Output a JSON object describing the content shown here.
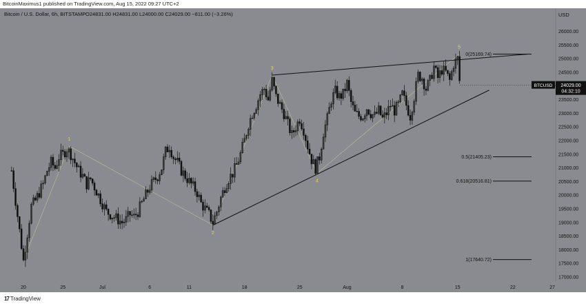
{
  "header": {
    "text": "BitcoinMaximus1 published on TradingView.com, Aug 15, 2022 09:27 UTC+2"
  },
  "legend": {
    "symbol": "Bitcoin / U.S. Dollar, 6h, BITSTAMP",
    "ohlc": "O24831.00 H24831.00 L24000.00 C24029.00 −811.00 (−3.26%)"
  },
  "footer": {
    "logo": "TradingView"
  },
  "colors": {
    "background": "#8a8b90",
    "candle": "#111111",
    "wave_label": "#e8d44d",
    "wave_line": "#b9b49a",
    "axis_text": "#111111",
    "price_box": "#111111"
  },
  "chart_data": {
    "type": "candlestick",
    "currency": "USD",
    "ylim": [
      16600,
      26600
    ],
    "y_ticks": [
      17000,
      17500,
      18000,
      18500,
      19000,
      19500,
      20000,
      20500,
      21000,
      21500,
      22000,
      22500,
      23000,
      23500,
      24000,
      24500,
      25000,
      25500,
      26000
    ],
    "top_tick_label": "26000.00",
    "x_ticks": [
      "20",
      "25",
      "Jul",
      "6",
      "11",
      "18",
      "25",
      "Aug",
      "8",
      "15",
      "22",
      "27"
    ],
    "x_tick_days": [
      0,
      5,
      10,
      16,
      21,
      28,
      35,
      41,
      48,
      55,
      62,
      67
    ],
    "last_price": {
      "symbol": "BTCUSD",
      "price": "24029.00",
      "countdown": "04:32:10"
    },
    "wave_points": [
      {
        "label": "1",
        "day": 5.8,
        "price": 21800
      },
      {
        "label": "2",
        "day": 24,
        "price": 18900
      },
      {
        "label": "3",
        "day": 31.5,
        "price": 24400
      },
      {
        "label": "4",
        "day": 37.2,
        "price": 20800
      },
      {
        "label": "5",
        "day": 55.2,
        "price": 25169.74
      }
    ],
    "wave_path": [
      [
        0,
        17600
      ],
      [
        5.8,
        21800
      ],
      [
        24,
        18900
      ],
      [
        31.5,
        24400
      ],
      [
        37.2,
        20800
      ],
      [
        55.2,
        25169.74
      ]
    ],
    "trendlines": [
      {
        "from": [
          31.5,
          24400
        ],
        "to": [
          64,
          25169.74
        ]
      },
      {
        "from": [
          24,
          18900
        ],
        "to": [
          59,
          23850
        ]
      }
    ],
    "fib_levels": [
      {
        "label": "0(25169.74)",
        "price": 25169.74
      },
      {
        "label": "0.5(21405.23)",
        "price": 21405.23
      },
      {
        "label": "0.618(20516.81)",
        "price": 20516.81
      },
      {
        "label": "1(17640.72)",
        "price": 17640.72
      }
    ],
    "close_path": [
      [
        -1.5,
        20900
      ],
      [
        0,
        17600
      ],
      [
        0.5,
        18600
      ],
      [
        1,
        19600
      ],
      [
        1.5,
        19800
      ],
      [
        2,
        20100
      ],
      [
        2.5,
        20400
      ],
      [
        3,
        20900
      ],
      [
        3.5,
        21200
      ],
      [
        4,
        21000
      ],
      [
        4.5,
        21400
      ],
      [
        5,
        21500
      ],
      [
        5.5,
        21700
      ],
      [
        6,
        21500
      ],
      [
        6.5,
        21200
      ],
      [
        7,
        20900
      ],
      [
        7.5,
        20700
      ],
      [
        8,
        20400
      ],
      [
        8.5,
        20600
      ],
      [
        9,
        20300
      ],
      [
        9.5,
        20000
      ],
      [
        10,
        19700
      ],
      [
        10.5,
        19400
      ],
      [
        11,
        19300
      ],
      [
        11.5,
        19200
      ],
      [
        12,
        19100
      ],
      [
        12.5,
        19000
      ],
      [
        13,
        19100
      ],
      [
        13.5,
        19300
      ],
      [
        14,
        19200
      ],
      [
        14.5,
        19400
      ],
      [
        15,
        19700
      ],
      [
        15.5,
        20000
      ],
      [
        16,
        20300
      ],
      [
        16.5,
        20500
      ],
      [
        17,
        20700
      ],
      [
        17.5,
        21000
      ],
      [
        18,
        21600
      ],
      [
        18.5,
        21800
      ],
      [
        19,
        21400
      ],
      [
        19.5,
        21200
      ],
      [
        20,
        20900
      ],
      [
        20.5,
        20700
      ],
      [
        21,
        20500
      ],
      [
        21.5,
        20300
      ],
      [
        22,
        20100
      ],
      [
        22.5,
        19700
      ],
      [
        23,
        19500
      ],
      [
        23.5,
        19300
      ],
      [
        24,
        19000
      ],
      [
        24.5,
        19400
      ],
      [
        25,
        19900
      ],
      [
        25.5,
        20300
      ],
      [
        26,
        20600
      ],
      [
        26.5,
        20800
      ],
      [
        27,
        21100
      ],
      [
        27.5,
        21500
      ],
      [
        28,
        22000
      ],
      [
        28.5,
        22600
      ],
      [
        29,
        23000
      ],
      [
        29.5,
        23300
      ],
      [
        30,
        23700
      ],
      [
        30.5,
        23900
      ],
      [
        31,
        23500
      ],
      [
        31.5,
        24200
      ],
      [
        32,
        23600
      ],
      [
        32.5,
        23300
      ],
      [
        33,
        23000
      ],
      [
        33.5,
        22600
      ],
      [
        34,
        22200
      ],
      [
        34.5,
        22500
      ],
      [
        35,
        22800
      ],
      [
        35.5,
        22400
      ],
      [
        36,
        21800
      ],
      [
        36.5,
        21300
      ],
      [
        37,
        21000
      ],
      [
        37.5,
        21400
      ],
      [
        38,
        22300
      ],
      [
        38.5,
        22800
      ],
      [
        39,
        23500
      ],
      [
        39.5,
        23800
      ],
      [
        40,
        23600
      ],
      [
        40.5,
        23700
      ],
      [
        41,
        24100
      ],
      [
        41.5,
        23400
      ],
      [
        42,
        23000
      ],
      [
        42.5,
        22900
      ],
      [
        43,
        22900
      ],
      [
        43.5,
        23200
      ],
      [
        44,
        23000
      ],
      [
        44.5,
        22900
      ],
      [
        45,
        23100
      ],
      [
        45.5,
        22800
      ],
      [
        46,
        23000
      ],
      [
        46.5,
        23300
      ],
      [
        47,
        23100
      ],
      [
        47.5,
        23300
      ],
      [
        48,
        23700
      ],
      [
        48.5,
        23300
      ],
      [
        49,
        22900
      ],
      [
        49.5,
        23600
      ],
      [
        50,
        24400
      ],
      [
        50.5,
        24300
      ],
      [
        51,
        23900
      ],
      [
        51.5,
        24200
      ],
      [
        52,
        24700
      ],
      [
        52.5,
        24300
      ],
      [
        53,
        24600
      ],
      [
        53.5,
        24500
      ],
      [
        54,
        24200
      ],
      [
        54.5,
        24800
      ],
      [
        55,
        25000
      ],
      [
        55.3,
        24029
      ]
    ]
  }
}
